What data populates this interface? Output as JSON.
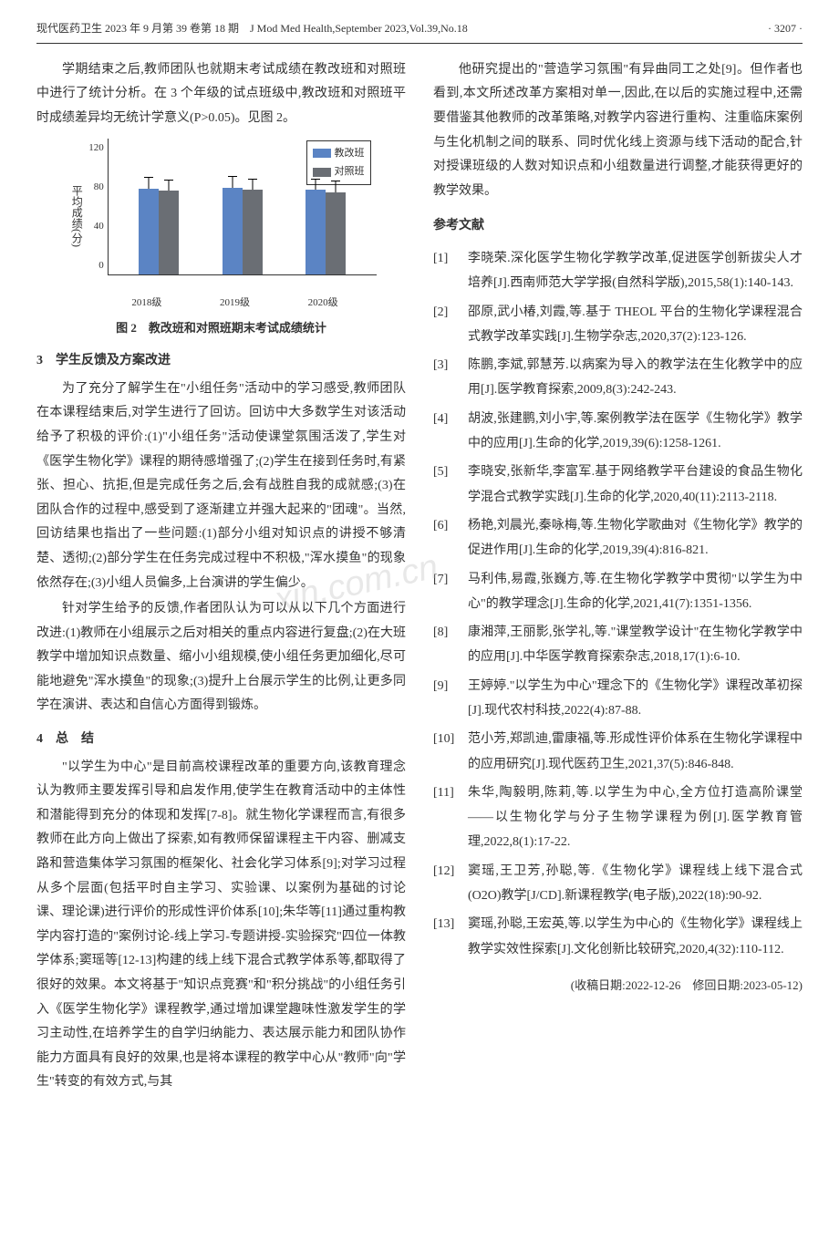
{
  "header": {
    "left": "现代医药卫生 2023 年 9 月第 39 卷第 18 期　J Mod Med Health,September 2023,Vol.39,No.18",
    "right": "· 3207 ·"
  },
  "left_col": {
    "intro_para": "学期结束之后,教师团队也就期末考试成绩在教改班和对照班中进行了统计分析。在 3 个年级的试点班级中,教改班和对照班平时成绩差异均无统计学意义(P>0.05)。见图 2。",
    "chart": {
      "type": "bar",
      "y_label": "平均成绩(分)",
      "y_ticks": [
        "120",
        "80",
        "40",
        "0"
      ],
      "ylim_max": 120,
      "categories": [
        "2018级",
        "2019级",
        "2020级"
      ],
      "series": [
        {
          "name": "教改班",
          "color": "#5b84c4",
          "values": [
            75,
            76,
            74
          ],
          "err": [
            10,
            10,
            10
          ]
        },
        {
          "name": "对照班",
          "color": "#6a6e74",
          "values": [
            73,
            74,
            72
          ],
          "err": [
            10,
            10,
            10
          ]
        }
      ],
      "caption_prefix": "图 2",
      "caption": "教改班和对照班期末考试成绩统计"
    },
    "sec3_head": "3　学生反馈及方案改进",
    "sec3_p1": "为了充分了解学生在\"小组任务\"活动中的学习感受,教师团队在本课程结束后,对学生进行了回访。回访中大多数学生对该活动给予了积极的评价:(1)\"小组任务\"活动使课堂氛围活泼了,学生对《医学生物化学》课程的期待感增强了;(2)学生在接到任务时,有紧张、担心、抗拒,但是完成任务之后,会有战胜自我的成就感;(3)在团队合作的过程中,感受到了逐渐建立并强大起来的\"团魂\"。当然,回访结果也指出了一些问题:(1)部分小组对知识点的讲授不够清楚、透彻;(2)部分学生在任务完成过程中不积极,\"浑水摸鱼\"的现象依然存在;(3)小组人员偏多,上台演讲的学生偏少。",
    "sec3_p2": "针对学生给予的反馈,作者团队认为可以从以下几个方面进行改进:(1)教师在小组展示之后对相关的重点内容进行复盘;(2)在大班教学中增加知识点数量、缩小小组规模,使小组任务更加细化,尽可能地避免\"浑水摸鱼\"的现象;(3)提升上台展示学生的比例,让更多同学在演讲、表达和自信心方面得到锻炼。",
    "sec4_head": "4　总　结",
    "sec4_p1": "\"以学生为中心\"是目前高校课程改革的重要方向,该教育理念认为教师主要发挥引导和启发作用,使学生在教育活动中的主体性和潜能得到充分的体现和发挥[7-8]。就生物化学课程而言,有很多教师在此方向上做出了探索,如有教师保留课程主干内容、删减支路和营造集体学习氛围的框架化、社会化学习体系[9];对学习过程从多个层面(包括平时自主学习、实验课、以案例为基础的讨论课、理论课)进行评价的形成性评价体系[10];朱华等[11]通过重构教学内容打造的\"案例讨论-线上学习-专题讲授-实验探究\"四位一体教学体系;窦瑶等[12-13]构建的线上线下混合式教学体系等,都取得了很好的效果。本文将基于\"知识点竞赛\"和\"积分挑战\"的小组任务引入《医学生物化学》课程教学,通过增加课堂趣味性激发学生的学习主动性,在培养学生的自学归纳能力、表达展示能力和团队协作能力方面具有良好的效果,也是将本课程的教学中心从\"教师\"向\"学生\"转变的有效方式,与其"
  },
  "right_col": {
    "cont_para": "他研究提出的\"营造学习氛围\"有异曲同工之处[9]。但作者也看到,本文所述改革方案相对单一,因此,在以后的实施过程中,还需要借鉴其他教师的改革策略,对教学内容进行重构、注重临床案例与生化机制之间的联系、同时优化线上资源与线下活动的配合,针对授课班级的人数对知识点和小组数量进行调整,才能获得更好的教学效果。",
    "ref_head": "参考文献",
    "refs": [
      {
        "n": "[1]",
        "t": "李晓荣.深化医学生物化学教学改革,促进医学创新拔尖人才培养[J].西南师范大学学报(自然科学版),2015,58(1):140-143."
      },
      {
        "n": "[2]",
        "t": "邵原,武小椿,刘霞,等.基于 THEOL 平台的生物化学课程混合式教学改革实践[J].生物学杂志,2020,37(2):123-126."
      },
      {
        "n": "[3]",
        "t": "陈鹏,李斌,郭慧芳.以病案为导入的教学法在生化教学中的应用[J].医学教育探索,2009,8(3):242-243."
      },
      {
        "n": "[4]",
        "t": "胡波,张建鹏,刘小宇,等.案例教学法在医学《生物化学》教学中的应用[J].生命的化学,2019,39(6):1258-1261."
      },
      {
        "n": "[5]",
        "t": "李晓安,张新华,李富军.基于网络教学平台建设的食品生物化学混合式教学实践[J].生命的化学,2020,40(11):2113-2118."
      },
      {
        "n": "[6]",
        "t": "杨艳,刘晨光,秦咏梅,等.生物化学歌曲对《生物化学》教学的促进作用[J].生命的化学,2019,39(4):816-821."
      },
      {
        "n": "[7]",
        "t": "马利伟,易霞,张巍方,等.在生物化学教学中贯彻\"以学生为中心\"的教学理念[J].生命的化学,2021,41(7):1351-1356."
      },
      {
        "n": "[8]",
        "t": "康湘萍,王丽影,张学礼,等.\"课堂教学设计\"在生物化学教学中的应用[J].中华医学教育探索杂志,2018,17(1):6-10."
      },
      {
        "n": "[9]",
        "t": "王婷婷.\"以学生为中心\"理念下的《生物化学》课程改革初探[J].现代农村科技,2022(4):87-88."
      },
      {
        "n": "[10]",
        "t": "范小芳,郑凯迪,雷康福,等.形成性评价体系在生物化学课程中的应用研究[J].现代医药卫生,2021,37(5):846-848."
      },
      {
        "n": "[11]",
        "t": "朱华,陶毅明,陈莉,等.以学生为中心,全方位打造高阶课堂——以生物化学与分子生物学课程为例[J].医学教育管理,2022,8(1):17-22."
      },
      {
        "n": "[12]",
        "t": "窦瑶,王卫芳,孙聪,等.《生物化学》课程线上线下混合式(O2O)教学[J/CD].新课程教学(电子版),2022(18):90-92."
      },
      {
        "n": "[13]",
        "t": "窦瑶,孙聪,王宏英,等.以学生为中心的《生物化学》课程线上教学实效性探索[J].文化创新比较研究,2020,4(32):110-112."
      }
    ],
    "dates": "(收稿日期:2022-12-26　修回日期:2023-05-12)"
  }
}
